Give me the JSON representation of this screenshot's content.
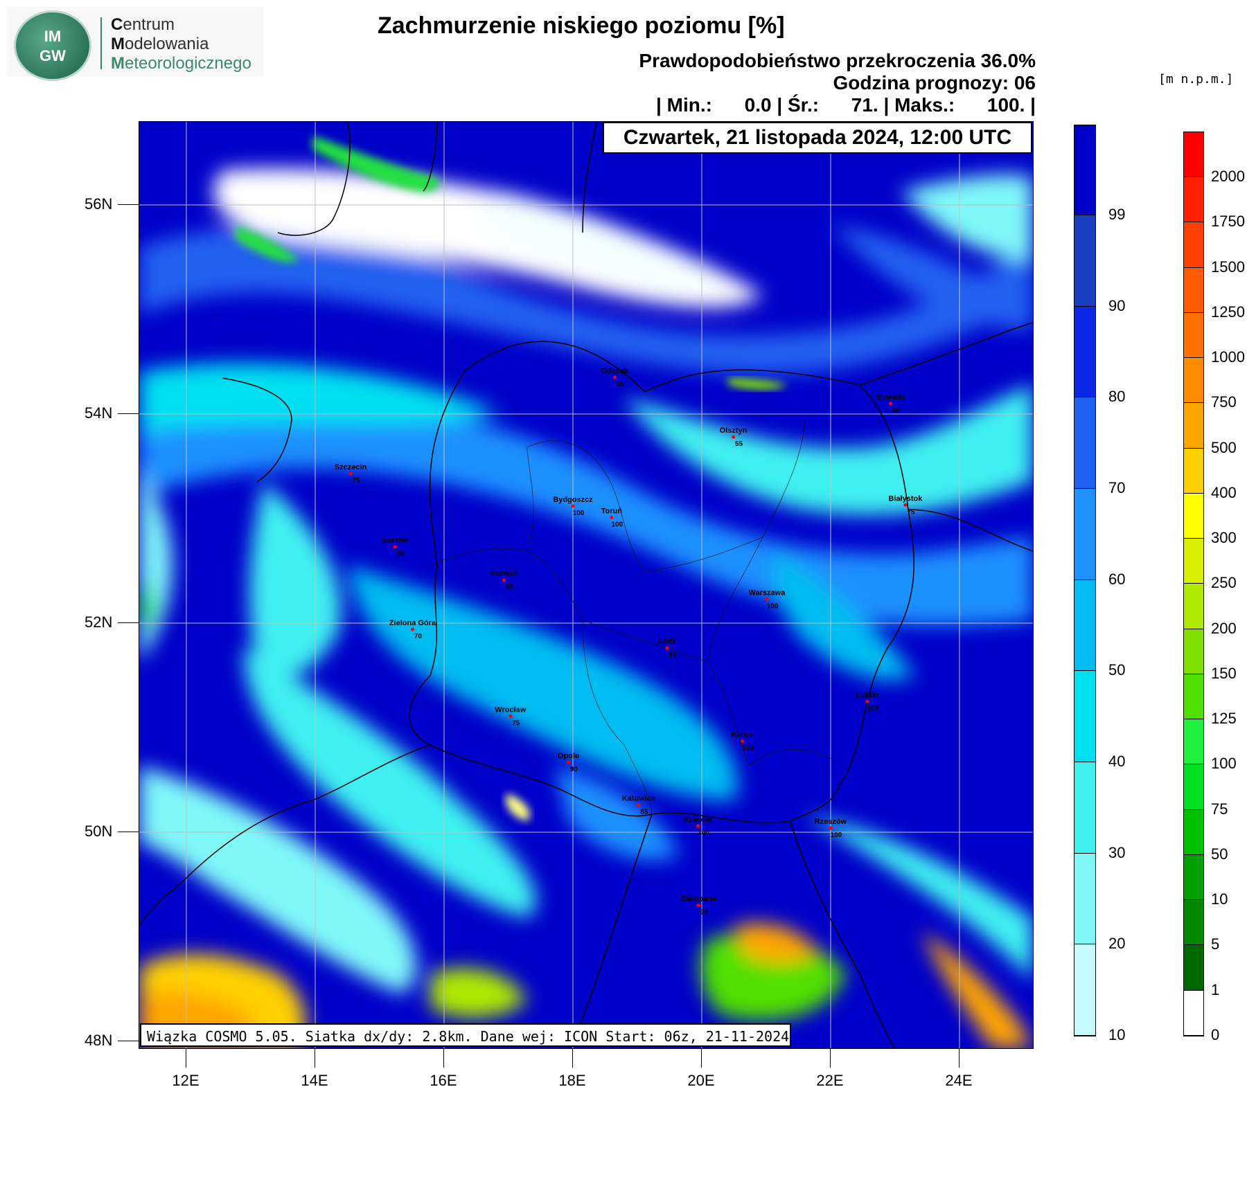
{
  "logo": {
    "badge_top": "IM",
    "badge_bottom": "GW",
    "line1_initial": "C",
    "line1_rest": "entrum",
    "line2_initial": "M",
    "line2_rest": "odelowania",
    "line3_initial": "M",
    "line3_rest": "eteorologicznego"
  },
  "header": {
    "title": "Zachmurzenie niskiego poziomu [%]",
    "probability": "Prawdopodobieństwo przekroczenia 36.0%",
    "forecast_hour": "Godzina prognozy: 06",
    "stats": "| Min.:      0.0 | Śr.:      71. | Maks.:      100. |"
  },
  "date_box": "Czwartek, 21 listopada 2024, 12:00 UTC",
  "footnote": "Wiązka COSMO 5.05. Siatka dx/dy: 2.8km. Dane wej: ICON Start: 06z, 21-11-2024",
  "axes": {
    "lat_labels": [
      "56N",
      "54N",
      "52N",
      "50N",
      "48N"
    ],
    "lon_labels": [
      "12E",
      "14E",
      "16E",
      "18E",
      "20E",
      "22E",
      "24E"
    ]
  },
  "cities": [
    {
      "name": "Gdańsk",
      "value": "35",
      "lon": 18.65,
      "lat": 54.35
    },
    {
      "name": "Suwałki",
      "value": "80",
      "lon": 22.93,
      "lat": 54.1
    },
    {
      "name": "Olsztyn",
      "value": "55",
      "lon": 20.49,
      "lat": 53.78
    },
    {
      "name": "Szczecin",
      "value": "75",
      "lon": 14.55,
      "lat": 53.43
    },
    {
      "name": "Bydgoszcz",
      "value": "100",
      "lon": 18.0,
      "lat": 53.12
    },
    {
      "name": "Toruń",
      "value": "100",
      "lon": 18.6,
      "lat": 53.01
    },
    {
      "name": "Białystok",
      "value": "75",
      "lon": 23.16,
      "lat": 53.13
    },
    {
      "name": "Gorzów",
      "value": "50",
      "lon": 15.24,
      "lat": 52.73
    },
    {
      "name": "Poznań",
      "value": "55",
      "lon": 16.93,
      "lat": 52.41
    },
    {
      "name": "Warszawa",
      "value": "100",
      "lon": 21.01,
      "lat": 52.23
    },
    {
      "name": "Zielona Góra",
      "value": "70",
      "lon": 15.51,
      "lat": 51.94
    },
    {
      "name": "Łódź",
      "value": "80",
      "lon": 19.46,
      "lat": 51.76
    },
    {
      "name": "Lublin",
      "value": "100",
      "lon": 22.57,
      "lat": 51.25
    },
    {
      "name": "Wrocław",
      "value": "75",
      "lon": 17.03,
      "lat": 51.11
    },
    {
      "name": "Kielce",
      "value": "100",
      "lon": 20.63,
      "lat": 50.87
    },
    {
      "name": "Opole",
      "value": "90",
      "lon": 17.93,
      "lat": 50.67
    },
    {
      "name": "Katowice",
      "value": "85",
      "lon": 19.02,
      "lat": 50.26
    },
    {
      "name": "Kraków",
      "value": "100",
      "lon": 19.94,
      "lat": 50.06
    },
    {
      "name": "Rzeszów",
      "value": "100",
      "lon": 22.0,
      "lat": 50.04
    },
    {
      "name": "Zakopane",
      "value": "90",
      "lon": 19.95,
      "lat": 49.3
    }
  ],
  "cloud_scale": {
    "labels": [
      "99",
      "90",
      "80",
      "70",
      "60",
      "50",
      "40",
      "30",
      "20",
      "10"
    ],
    "colors": [
      "#0000c8",
      "#1a3ec0",
      "#0a28e6",
      "#2060f0",
      "#1e90ff",
      "#00bcf0",
      "#00e0f0",
      "#40f0f0",
      "#80f8f8",
      "#c8fcfc",
      "#e8ffff"
    ]
  },
  "height_scale": {
    "units": "[m n.p.m.]",
    "labels": [
      "2000",
      "1750",
      "1500",
      "1250",
      "1000",
      "750",
      "500",
      "400",
      "300",
      "250",
      "200",
      "150",
      "125",
      "100",
      "75",
      "50",
      "10",
      "5",
      "1",
      "0"
    ],
    "colors": [
      "#ff0000",
      "#ff2000",
      "#ff4000",
      "#ff5a00",
      "#ff7000",
      "#ff8c00",
      "#ffa500",
      "#ffd000",
      "#ffff00",
      "#d8f000",
      "#b0e800",
      "#80e000",
      "#50e000",
      "#20f040",
      "#00e020",
      "#00c000",
      "#00a000",
      "#008800",
      "#006800",
      "#ffffff"
    ]
  },
  "colors": {
    "cloud_max": "#0000c8",
    "cloud_low": "#e8ffff",
    "city_marker": "#ff0000"
  }
}
